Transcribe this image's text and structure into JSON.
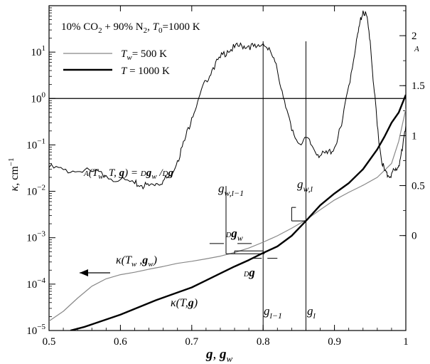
{
  "chart_data": {
    "type": "line",
    "title": "10% CO2 + 90% N2, T0=1000 K",
    "xlabel": "g, g_w",
    "ylabel_left": "κ, cm^-1",
    "ylabel_right": "A",
    "xlim": [
      0.5,
      1.0
    ],
    "ylim_left": [
      1e-05,
      100
    ],
    "ylim_right": [
      -0.95,
      2.3
    ],
    "yscale_left": "log",
    "xticks": [
      "0.5",
      "0.6",
      "0.7",
      "0.8",
      "0.9",
      "1"
    ],
    "yticks_left": [
      "10^-5",
      "10^-4",
      "10^-3",
      "10^-2",
      "10^-1",
      "10^0",
      "10^1"
    ],
    "yticks_right": [
      "0",
      "0.5",
      "1",
      "1.5",
      "2"
    ],
    "legend": {
      "placement": "top-left",
      "entries": [
        {
          "label": "T_w = 500 K",
          "color": "#888888",
          "width": 1.2
        },
        {
          "label": "T = 1000 K",
          "color": "#000000",
          "width": 2.4
        }
      ]
    },
    "series": [
      {
        "name": "T_w = 500 K",
        "axis": "left",
        "color": "#888888",
        "x": [
          0.5,
          0.52,
          0.54,
          0.56,
          0.58,
          0.6,
          0.62,
          0.64,
          0.66,
          0.68,
          0.7,
          0.72,
          0.74,
          0.76,
          0.78,
          0.8,
          0.82,
          0.84,
          0.86,
          0.88,
          0.9,
          0.92,
          0.94,
          0.96,
          0.98,
          0.99,
          1.0
        ],
        "y": [
          1.6e-05,
          2.6e-05,
          5e-05,
          9e-05,
          0.00013,
          0.00016,
          0.00018,
          0.00021,
          0.00024,
          0.00028,
          0.00031,
          0.00035,
          0.0004,
          0.00048,
          0.0006,
          0.0008,
          0.0011,
          0.0016,
          0.0024,
          0.004,
          0.0065,
          0.0095,
          0.0135,
          0.02,
          0.04,
          0.12,
          0.6
        ]
      },
      {
        "name": "T = 1000 K",
        "axis": "left",
        "color": "#000000",
        "x": [
          0.53,
          0.55,
          0.6,
          0.65,
          0.7,
          0.72,
          0.74,
          0.76,
          0.78,
          0.8,
          0.82,
          0.84,
          0.86,
          0.88,
          0.9,
          0.92,
          0.94,
          0.96,
          0.97,
          0.98,
          0.99,
          1.0
        ],
        "y": [
          1e-05,
          1.2e-05,
          2.2e-05,
          4.5e-05,
          8.5e-05,
          0.00012,
          0.00017,
          0.00024,
          0.00033,
          0.00047,
          0.00065,
          0.0011,
          0.0023,
          0.005,
          0.009,
          0.015,
          0.03,
          0.08,
          0.15,
          0.3,
          0.5,
          1.2
        ]
      },
      {
        "name": "A",
        "axis": "right",
        "color": "#000000",
        "x": [
          0.5,
          0.52,
          0.54,
          0.56,
          0.58,
          0.6,
          0.62,
          0.63,
          0.64,
          0.65,
          0.66,
          0.67,
          0.68,
          0.69,
          0.7,
          0.71,
          0.72,
          0.73,
          0.74,
          0.75,
          0.76,
          0.77,
          0.78,
          0.79,
          0.8,
          0.81,
          0.82,
          0.83,
          0.84,
          0.85,
          0.86,
          0.87,
          0.88,
          0.89,
          0.9,
          0.91,
          0.92,
          0.93,
          0.935,
          0.94,
          0.945,
          0.95,
          0.955,
          0.96,
          0.965,
          0.97,
          0.975,
          0.98,
          0.985,
          0.99,
          0.995,
          1.0
        ],
        "y": [
          0.68,
          0.66,
          0.64,
          0.64,
          0.6,
          0.56,
          0.52,
          0.5,
          0.5,
          0.52,
          0.55,
          0.6,
          0.75,
          0.95,
          1.18,
          1.38,
          1.55,
          1.68,
          1.78,
          1.85,
          1.88,
          1.9,
          1.9,
          1.88,
          1.92,
          1.85,
          1.65,
          1.35,
          1.05,
          0.92,
          0.98,
          0.88,
          0.8,
          0.82,
          0.88,
          1.1,
          1.5,
          1.9,
          2.1,
          2.25,
          2.2,
          1.95,
          1.5,
          1.1,
          0.8,
          0.65,
          0.6,
          0.62,
          0.65,
          0.7,
          0.85,
          1.1
        ]
      }
    ],
    "reference_lines": [
      {
        "type": "horizontal",
        "axis": "left",
        "y": 1
      },
      {
        "type": "vertical",
        "x": 0.8
      },
      {
        "type": "vertical",
        "x": 0.86
      }
    ],
    "annotations": [
      {
        "text": "A(T_w, T, g) = Dg_w/Dg"
      },
      {
        "text": "g_w,I-1"
      },
      {
        "text": "g_w,I"
      },
      {
        "text": "Dg_w"
      },
      {
        "text": "Dg"
      },
      {
        "text": "κ(T_w, g_w)"
      },
      {
        "text": "κ(T, g)"
      },
      {
        "text": "g_I-1"
      },
      {
        "text": "g_I"
      }
    ]
  }
}
